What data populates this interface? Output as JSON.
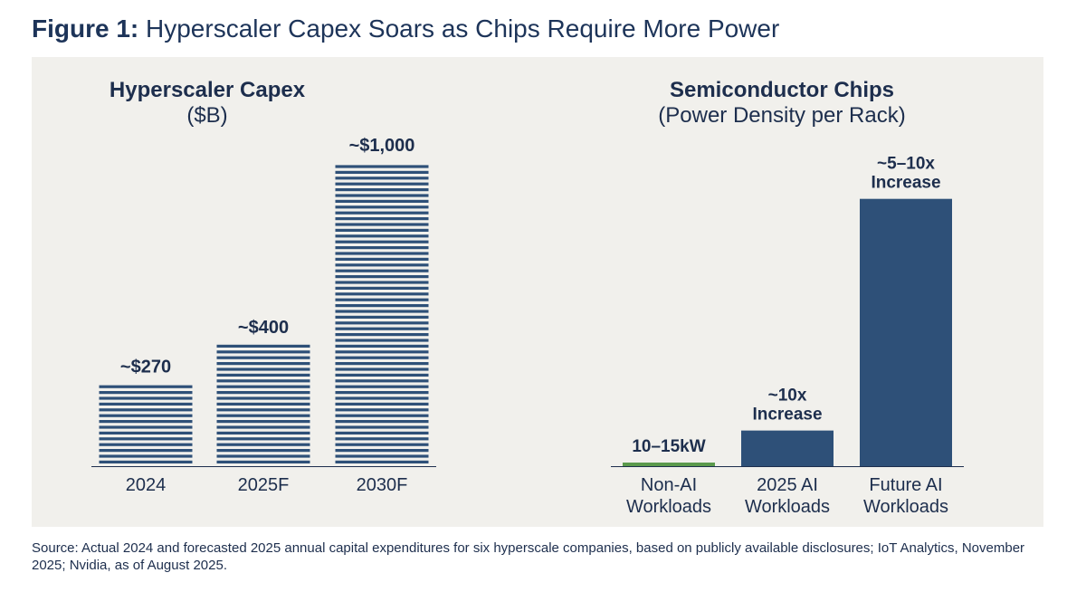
{
  "figure": {
    "label": "Figure 1:",
    "title": "Hyperscaler Capex Soars as Chips Require More Power"
  },
  "colors": {
    "navy": "#2e5078",
    "green": "#5b9a4c",
    "text": "#1d2e4d",
    "panel_bg": "#f1f0ec"
  },
  "chart_data": [
    {
      "type": "bar",
      "title": "Hyperscaler Capex",
      "subtitle": "($B)",
      "style": "horizontal-stripe fill",
      "categories": [
        "2024",
        "2025F",
        "2030F"
      ],
      "values": [
        270,
        400,
        1000
      ],
      "data_labels": [
        "~$270",
        "~$400",
        "~$1,000"
      ],
      "ylim": [
        0,
        1000
      ],
      "grid": false,
      "legend": "none"
    },
    {
      "type": "bar",
      "title": "Semiconductor Chips",
      "subtitle": "(Power Density per Rack)",
      "categories": [
        [
          "Non-AI",
          "Workloads"
        ],
        [
          "2025 AI",
          "Workloads"
        ],
        [
          "Future AI",
          "Workloads"
        ]
      ],
      "values": [
        12.5,
        125,
        937.5
      ],
      "unit": "kW per rack (approximate, estimated from bar heights)",
      "data_labels": [
        [
          "10–15kW"
        ],
        [
          "~10x",
          "Increase"
        ],
        [
          "~5–10x",
          "Increase"
        ]
      ],
      "bar_colors": [
        "#5b9a4c",
        "#2e5078",
        "#2e5078"
      ],
      "ylim": [
        0,
        1000
      ],
      "grid": false,
      "legend": "none"
    }
  ],
  "source_note": "Source: Actual 2024 and forecasted 2025 annual capital expenditures for six hyperscale companies, based on publicly available disclosures; IoT Analytics, November 2025; Nvidia, as of August 2025."
}
